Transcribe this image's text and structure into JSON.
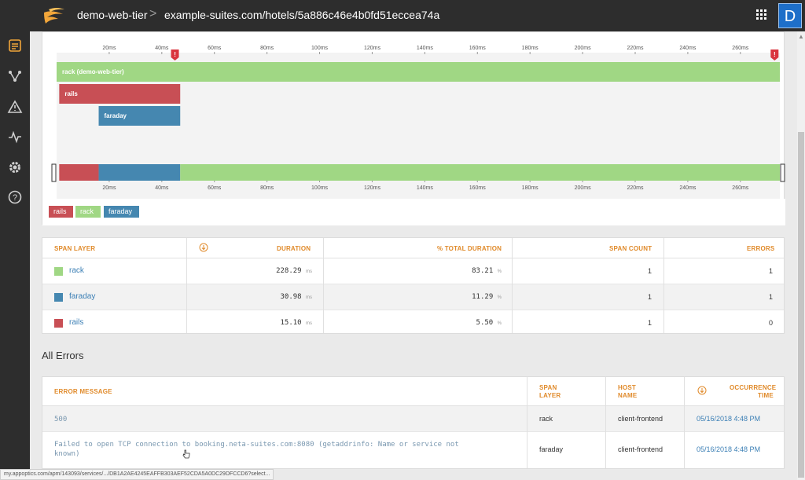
{
  "topbar": {
    "app_name": "demo-web-tier",
    "breadcrumb_separator": ">",
    "breadcrumb": "example-suites.com/hotels/5a886c46e4b0fd51eccea74a",
    "avatar_initial": "D"
  },
  "nav_icons": [
    "home-icon",
    "traces-icon",
    "services-icon",
    "alerts-icon",
    "metrics-icon",
    "settings-icon",
    "help-icon"
  ],
  "colors": {
    "rack": "#a0d784",
    "rails": "#c84f55",
    "faraday": "#4587b0",
    "accent": "#e08a2a",
    "link": "#3b7fb5"
  },
  "chart_data": {
    "type": "bar",
    "xlabel": "",
    "ylabel": "",
    "x_ticks": [
      "20ms",
      "40ms",
      "60ms",
      "80ms",
      "100ms",
      "120ms",
      "140ms",
      "160ms",
      "180ms",
      "200ms",
      "220ms",
      "240ms",
      "260ms"
    ],
    "xlim": [
      0,
      275
    ],
    "spans": [
      {
        "name": "rack (demo-web-tier)",
        "layer": "rack",
        "start": 0,
        "end": 275
      },
      {
        "name": "rails",
        "layer": "rails",
        "start": 1,
        "end": 47
      },
      {
        "name": "faraday",
        "layer": "faraday",
        "start": 16,
        "end": 47
      }
    ],
    "overview": [
      {
        "layer": "rails",
        "start": 1,
        "end": 16
      },
      {
        "layer": "faraday",
        "start": 16,
        "end": 47
      },
      {
        "layer": "rack",
        "start": 47,
        "end": 275
      }
    ],
    "error_markers": [
      {
        "time": 45,
        "label": "!"
      },
      {
        "time": 273,
        "label": "!"
      }
    ]
  },
  "legend": [
    {
      "label": "rails",
      "layer": "rails"
    },
    {
      "label": "rack",
      "layer": "rack"
    },
    {
      "label": "faraday",
      "layer": "faraday"
    }
  ],
  "span_table": {
    "headers": {
      "span_layer": "SPAN LAYER",
      "duration": "DURATION",
      "pct_total": "% TOTAL DURATION",
      "span_count": "SPAN COUNT",
      "errors": "ERRORS"
    },
    "rows": [
      {
        "layer": "rack",
        "duration": "228.29",
        "duration_unit": "ms",
        "pct": "83.21",
        "pct_unit": "%",
        "span_count": "1",
        "errors": "1"
      },
      {
        "layer": "faraday",
        "duration": "30.98",
        "duration_unit": "ms",
        "pct": "11.29",
        "pct_unit": "%",
        "span_count": "1",
        "errors": "1"
      },
      {
        "layer": "rails",
        "duration": "15.10",
        "duration_unit": "ms",
        "pct": "5.50",
        "pct_unit": "%",
        "span_count": "1",
        "errors": "0"
      }
    ]
  },
  "errors_section": {
    "title": "All Errors",
    "headers": {
      "message": "ERROR MESSAGE",
      "span_layer_1": "SPAN",
      "span_layer_2": "LAYER",
      "host_1": "HOST",
      "host_2": "NAME",
      "time_1": "OCCURRENCE",
      "time_2": "TIME"
    },
    "rows": [
      {
        "message_1": "500",
        "message_2": "",
        "layer": "rack",
        "host": "client-frontend",
        "time": "05/16/2018 4:48 PM"
      },
      {
        "message_1": "Failed to open TCP connection to booking.neta-suites.com:8080 (getaddrinfo: Name or service not",
        "message_2": "known)",
        "layer": "faraday",
        "host": "client-frontend",
        "time": "05/16/2018 4:48 PM"
      }
    ]
  },
  "status_url": "my.appoptics.com/apm/143093/services/.../DB1A2AE4245EAFFB303AEF52CDA5A0DC29DFCCD6?select..."
}
